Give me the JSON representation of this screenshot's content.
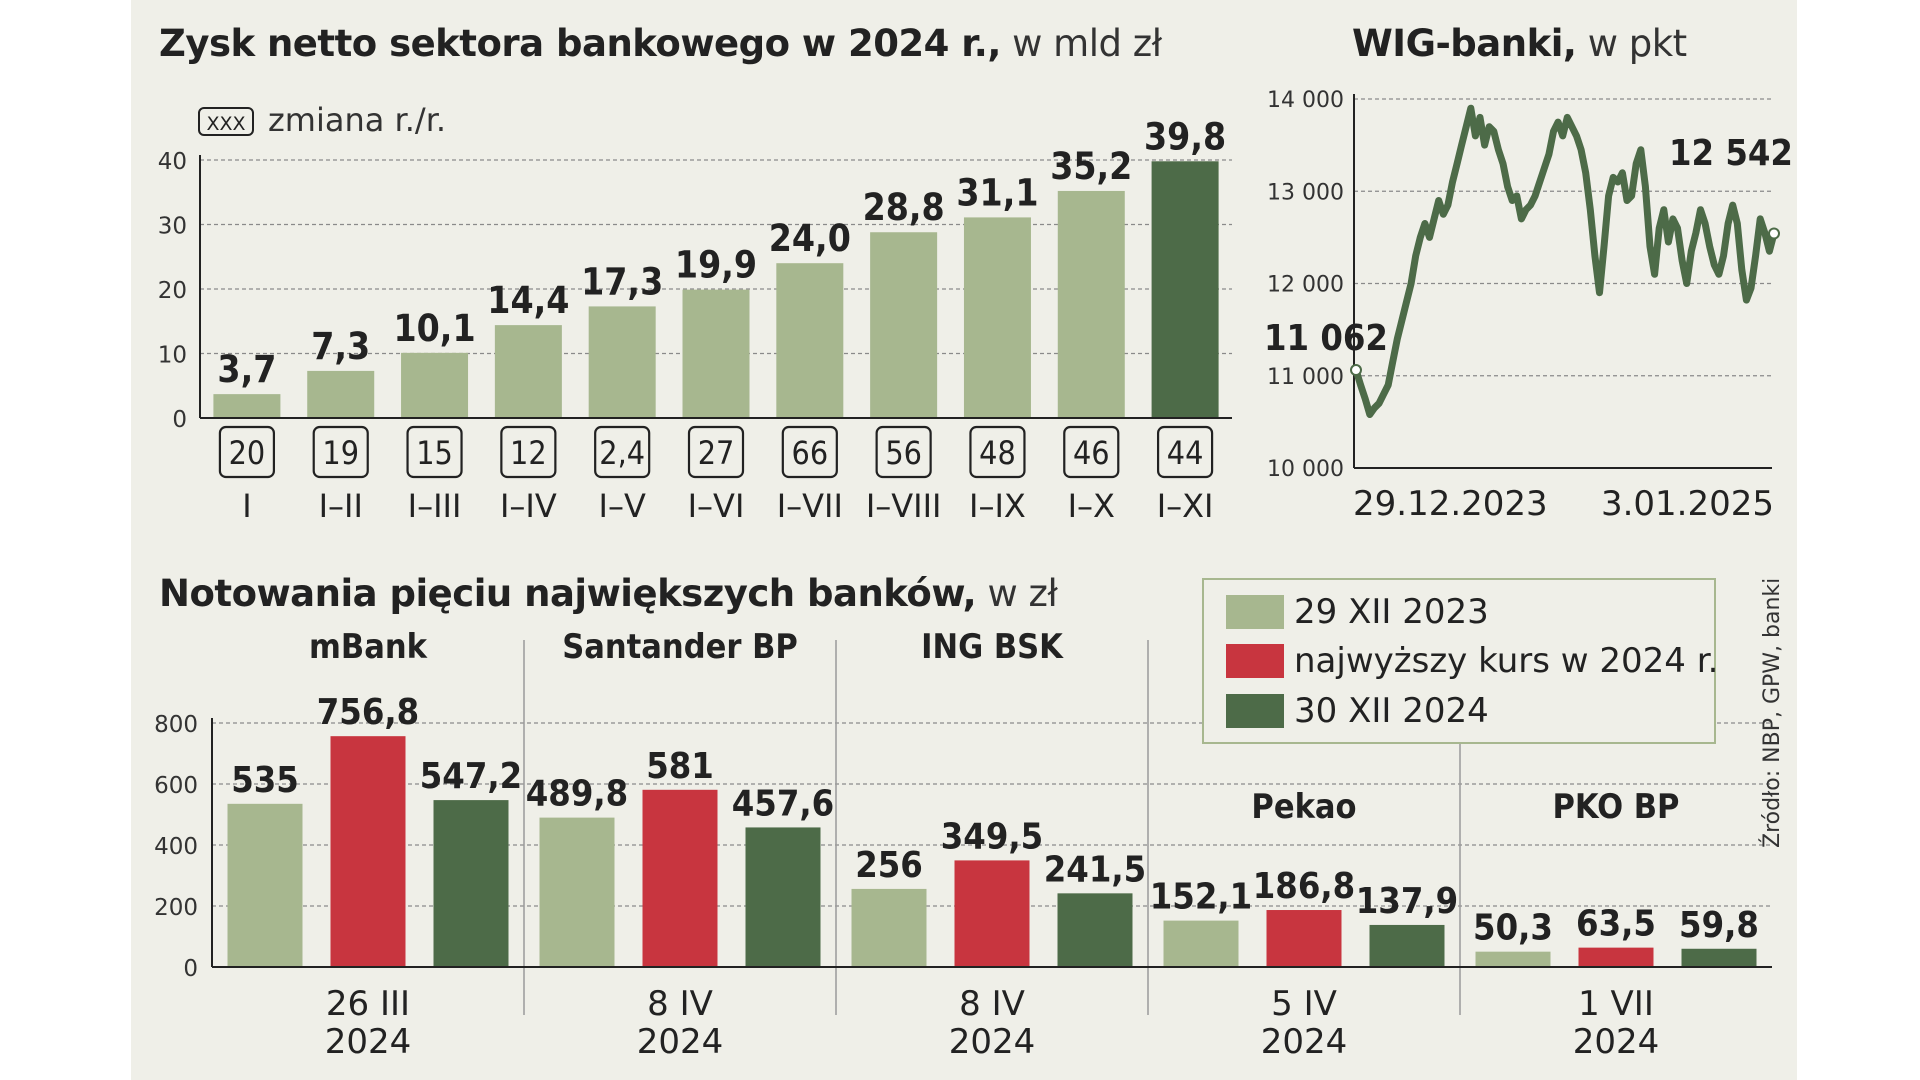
{
  "colors": {
    "light": "#a7b78f",
    "dark": "#4d6b48",
    "red": "#c8353f",
    "background": "#efefe8",
    "text": "#222222",
    "grid": "#8a8a8a"
  },
  "chart_data": [
    {
      "id": "profit",
      "type": "bar",
      "title_bold": "Zysk netto sektora bankowego w 2024 r.,",
      "title_light": "w mld zł",
      "change_label": "zmiana r./r.",
      "change_badge": "XXX",
      "ylim": [
        0,
        40
      ],
      "yticks": [
        0,
        10,
        20,
        30,
        40
      ],
      "categories": [
        "I",
        "I–II",
        "I–III",
        "I–IV",
        "I–V",
        "I–VI",
        "I–VII",
        "I–VIII",
        "I–IX",
        "I–X",
        "I–XI"
      ],
      "values": [
        3.7,
        7.3,
        10.1,
        14.4,
        17.3,
        19.9,
        24.0,
        28.8,
        31.1,
        35.2,
        39.8
      ],
      "value_labels": [
        "3,7",
        "7,3",
        "10,1",
        "14,4",
        "17,3",
        "19,9",
        "24,0",
        "28,8",
        "31,1",
        "35,2",
        "39,8"
      ],
      "changes": [
        "20",
        "19",
        "15",
        "12",
        "2,4",
        "27",
        "66",
        "56",
        "48",
        "46",
        "44"
      ],
      "highlight_index": 10
    },
    {
      "id": "wig",
      "type": "line",
      "title_bold": "WIG-banki,",
      "title_light": "w pkt",
      "ylim": [
        10000,
        14000
      ],
      "yticks": [
        10000,
        11000,
        12000,
        13000,
        14000
      ],
      "ytick_labels": [
        "10 000",
        "11 000",
        "12 000",
        "13 000",
        "14 000"
      ],
      "x_labels": [
        "29.12.2023",
        "3.01.2025"
      ],
      "start_value": 11062,
      "start_label": "11 062",
      "end_value": 12542,
      "end_label": "12 542",
      "series": [
        11062,
        10900,
        10750,
        10580,
        10650,
        10700,
        10800,
        10900,
        11150,
        11400,
        11600,
        11800,
        12000,
        12300,
        12500,
        12650,
        12500,
        12700,
        12900,
        12750,
        12850,
        13100,
        13300,
        13500,
        13700,
        13900,
        13600,
        13800,
        13500,
        13700,
        13650,
        13450,
        13300,
        13050,
        12900,
        12950,
        12700,
        12800,
        12850,
        12950,
        13100,
        13250,
        13400,
        13650,
        13750,
        13600,
        13800,
        13700,
        13600,
        13450,
        13200,
        12800,
        12300,
        11900,
        12400,
        12950,
        13150,
        13100,
        13200,
        12900,
        12950,
        13300,
        13450,
        13050,
        12400,
        12100,
        12600,
        12800,
        12450,
        12700,
        12600,
        12250,
        12000,
        12350,
        12550,
        12800,
        12650,
        12400,
        12200,
        12100,
        12300,
        12650,
        12850,
        12650,
        12150,
        11820,
        11950,
        12300,
        12700,
        12550,
        12350,
        12542
      ]
    },
    {
      "id": "stocks",
      "type": "bar",
      "title_bold": "Notowania pięciu największych banków,",
      "title_light": "w zł",
      "ylim": [
        0,
        800
      ],
      "yticks": [
        0,
        200,
        400,
        600,
        800
      ],
      "legend": [
        "29 XII 2023",
        "najwyższy kurs w 2024 r.",
        "30 XII 2024"
      ],
      "groups": [
        {
          "name": "mBank",
          "date": "26 III",
          "year": "2024",
          "values": [
            535,
            756.8,
            547.2
          ],
          "labels": [
            "535",
            "756,8",
            "547,2"
          ]
        },
        {
          "name": "Santander BP",
          "date": "8 IV",
          "year": "2024",
          "values": [
            489.8,
            581,
            457.6
          ],
          "labels": [
            "489,8",
            "581",
            "457,6"
          ]
        },
        {
          "name": "ING BSK",
          "date": "8 IV",
          "year": "2024",
          "values": [
            256,
            349.5,
            241.5
          ],
          "labels": [
            "256",
            "349,5",
            "241,5"
          ]
        },
        {
          "name": "Pekao",
          "date": "5 IV",
          "year": "2024",
          "values": [
            152.1,
            186.8,
            137.9
          ],
          "labels": [
            "152,1",
            "186,8",
            "137,9"
          ]
        },
        {
          "name": "PKO BP",
          "date": "1 VII",
          "year": "2024",
          "values": [
            50.3,
            63.5,
            59.8
          ],
          "labels": [
            "50,3",
            "63,5",
            "59,8"
          ]
        }
      ]
    }
  ],
  "source": "Źródło: NBP, GPW, banki"
}
